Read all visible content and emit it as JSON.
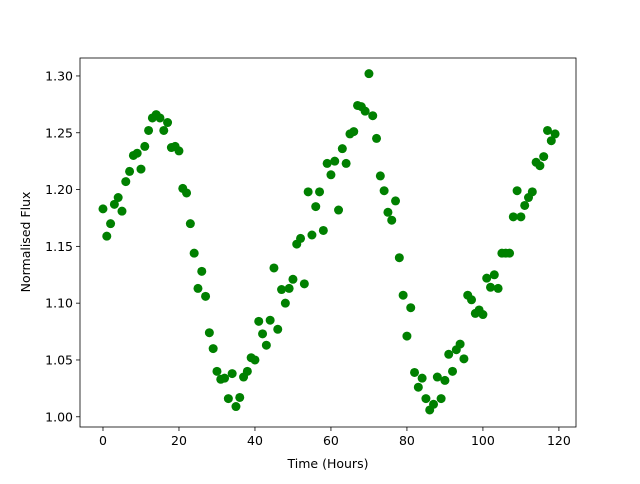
{
  "chart_data": {
    "type": "scatter",
    "xlabel": "Time (Hours)",
    "ylabel": "Normalised Flux",
    "color": "#008000",
    "x": [
      0,
      1,
      2,
      3,
      4,
      5,
      6,
      7,
      8,
      9,
      10,
      11,
      12,
      13,
      14,
      15,
      16,
      17,
      18,
      19,
      20,
      21,
      22,
      23,
      24,
      25,
      26,
      27,
      28,
      29,
      30,
      31,
      32,
      33,
      34,
      35,
      36,
      37,
      38,
      39,
      40,
      41,
      42,
      43,
      44,
      45,
      46,
      47,
      48,
      49,
      50,
      51,
      52,
      53,
      54,
      55,
      56,
      57,
      58,
      59,
      60,
      61,
      62,
      63,
      64,
      65,
      66,
      67,
      68,
      69,
      70,
      71,
      72,
      73,
      74,
      75,
      76,
      77,
      78,
      79,
      80,
      81,
      82,
      83,
      84,
      85,
      86,
      87,
      88,
      89,
      90,
      91,
      92,
      93,
      94,
      95,
      96,
      97,
      98,
      99,
      100,
      101,
      102,
      103,
      104,
      105,
      106,
      107,
      108,
      109,
      110,
      111,
      112,
      113,
      114,
      115,
      116,
      117,
      118,
      119
    ],
    "y": [
      1.183,
      1.159,
      1.17,
      1.187,
      1.193,
      1.181,
      1.207,
      1.216,
      1.23,
      1.232,
      1.218,
      1.238,
      1.252,
      1.263,
      1.266,
      1.263,
      1.252,
      1.259,
      1.237,
      1.238,
      1.234,
      1.201,
      1.197,
      1.17,
      1.144,
      1.113,
      1.128,
      1.106,
      1.074,
      1.06,
      1.04,
      1.033,
      1.034,
      1.016,
      1.038,
      1.009,
      1.017,
      1.035,
      1.04,
      1.052,
      1.05,
      1.084,
      1.073,
      1.063,
      1.085,
      1.131,
      1.077,
      1.112,
      1.1,
      1.113,
      1.121,
      1.152,
      1.157,
      1.117,
      1.198,
      1.16,
      1.185,
      1.198,
      1.164,
      1.223,
      1.213,
      1.225,
      1.182,
      1.236,
      1.223,
      1.249,
      1.251,
      1.274,
      1.273,
      1.269,
      1.302,
      1.265,
      1.245,
      1.212,
      1.199,
      1.18,
      1.173,
      1.19,
      1.14,
      1.107,
      1.071,
      1.096,
      1.039,
      1.026,
      1.034,
      1.016,
      1.006,
      1.011,
      1.035,
      1.016,
      1.032,
      1.055,
      1.04,
      1.059,
      1.064,
      1.051,
      1.107,
      1.103,
      1.091,
      1.094,
      1.09,
      1.122,
      1.114,
      1.125,
      1.113,
      1.144,
      1.144,
      1.144,
      1.176,
      1.199,
      1.176,
      1.186,
      1.193,
      1.198,
      1.224,
      1.221,
      1.229,
      1.252,
      1.243,
      1.249
    ],
    "xlim": [
      -6.05,
      124.5
    ],
    "ylim": [
      0.991,
      1.3158
    ],
    "xticks": [
      0,
      20,
      40,
      60,
      80,
      100,
      120
    ],
    "yticks": [
      {
        "value": 1.0,
        "label": "1.00"
      },
      1.05,
      {
        "value": 1.1,
        "label": "1.10"
      },
      1.15,
      {
        "value": 1.2,
        "label": "1.20"
      },
      1.25,
      {
        "value": 1.3,
        "label": "1.30"
      }
    ]
  }
}
